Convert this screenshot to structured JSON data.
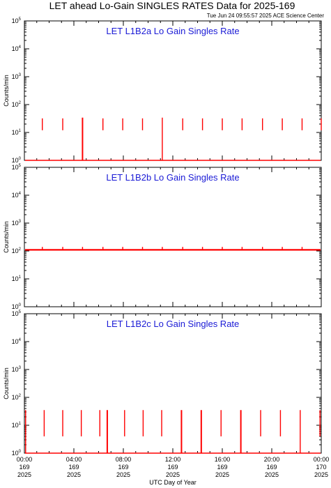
{
  "title": "LET ahead Lo-Gain SINGLES RATES Data for 2025-169",
  "timestamp": "Tue Jun 24 09:55:57 2025 ACE Science Center",
  "xlabel": "UTC Day of Year",
  "ylabel": "Counts/min",
  "colors": {
    "data": "#ff0000",
    "panel_title": "#1a1ad6",
    "axes": "#000000"
  },
  "x_ticks": [
    {
      "time": "00:00",
      "day": "169",
      "year": "2025"
    },
    {
      "time": "04:00",
      "day": "169",
      "year": "2025"
    },
    {
      "time": "08:00",
      "day": "169",
      "year": "2025"
    },
    {
      "time": "12:00",
      "day": "169",
      "year": "2025"
    },
    {
      "time": "16:00",
      "day": "169",
      "year": "2025"
    },
    {
      "time": "20:00",
      "day": "169",
      "year": "2025"
    },
    {
      "time": "00:00",
      "day": "170",
      "year": "2025"
    }
  ],
  "chart_data": [
    {
      "type": "line",
      "title": "LET L1B2a Lo Gain Singles Rate",
      "y_scale": "log",
      "ylim": [
        1,
        100000
      ],
      "xlim_hours": [
        0,
        24
      ],
      "baseline": 1,
      "spikes": [
        {
          "t": 1.45,
          "lo": 12,
          "hi": 32
        },
        {
          "t": 3.1,
          "lo": 12,
          "hi": 32
        },
        {
          "t": 4.7,
          "lo": 1,
          "hi": 34,
          "w": 2
        },
        {
          "t": 6.35,
          "lo": 12,
          "hi": 32
        },
        {
          "t": 7.95,
          "lo": 12,
          "hi": 32
        },
        {
          "t": 9.55,
          "lo": 12,
          "hi": 32
        },
        {
          "t": 11.15,
          "lo": 1,
          "hi": 34
        },
        {
          "t": 12.8,
          "lo": 12,
          "hi": 32
        },
        {
          "t": 14.4,
          "lo": 12,
          "hi": 32
        },
        {
          "t": 16.0,
          "lo": 12,
          "hi": 32
        },
        {
          "t": 17.6,
          "lo": 12,
          "hi": 32
        },
        {
          "t": 19.25,
          "lo": 12,
          "hi": 32
        },
        {
          "t": 20.85,
          "lo": 12,
          "hi": 32
        },
        {
          "t": 22.45,
          "lo": 12,
          "hi": 32
        },
        {
          "t": 24.0,
          "lo": 12,
          "hi": 32
        }
      ]
    },
    {
      "type": "line",
      "title": "LET L1B2b Lo Gain Singles Rate",
      "y_scale": "log",
      "ylim": [
        1,
        100000
      ],
      "xlim_hours": [
        0,
        24
      ],
      "baseline": 110,
      "spikes": [
        {
          "t": 1.45,
          "lo": 110,
          "hi": 140
        },
        {
          "t": 3.1,
          "lo": 110,
          "hi": 140
        },
        {
          "t": 4.7,
          "lo": 110,
          "hi": 140
        },
        {
          "t": 6.35,
          "lo": 110,
          "hi": 140
        },
        {
          "t": 7.95,
          "lo": 110,
          "hi": 140
        },
        {
          "t": 9.55,
          "lo": 110,
          "hi": 140
        },
        {
          "t": 11.15,
          "lo": 110,
          "hi": 140
        },
        {
          "t": 12.8,
          "lo": 110,
          "hi": 140
        },
        {
          "t": 14.4,
          "lo": 110,
          "hi": 140
        },
        {
          "t": 16.0,
          "lo": 110,
          "hi": 140
        },
        {
          "t": 17.6,
          "lo": 110,
          "hi": 140
        },
        {
          "t": 19.25,
          "lo": 110,
          "hi": 140
        },
        {
          "t": 20.85,
          "lo": 110,
          "hi": 140
        },
        {
          "t": 22.45,
          "lo": 110,
          "hi": 140
        }
      ]
    },
    {
      "type": "line",
      "title": "LET L1B2c Lo Gain Singles Rate",
      "y_scale": "log",
      "ylim": [
        1,
        100000
      ],
      "xlim_hours": [
        0,
        24
      ],
      "baseline": 1,
      "spikes": [
        {
          "t": 0.1,
          "lo": 1,
          "hi": 35
        },
        {
          "t": 1.6,
          "lo": 4,
          "hi": 35
        },
        {
          "t": 3.1,
          "lo": 4,
          "hi": 35
        },
        {
          "t": 4.6,
          "lo": 4,
          "hi": 35
        },
        {
          "t": 6.1,
          "lo": 4,
          "hi": 35
        },
        {
          "t": 6.7,
          "lo": 1,
          "hi": 35,
          "w": 2
        },
        {
          "t": 8.1,
          "lo": 4,
          "hi": 35
        },
        {
          "t": 9.6,
          "lo": 4,
          "hi": 35
        },
        {
          "t": 11.1,
          "lo": 4,
          "hi": 35
        },
        {
          "t": 12.7,
          "lo": 1,
          "hi": 35,
          "w": 2
        },
        {
          "t": 14.3,
          "lo": 1,
          "hi": 35,
          "w": 2
        },
        {
          "t": 15.9,
          "lo": 4,
          "hi": 35
        },
        {
          "t": 17.5,
          "lo": 1,
          "hi": 35,
          "w": 2
        },
        {
          "t": 19.1,
          "lo": 4,
          "hi": 35
        },
        {
          "t": 20.7,
          "lo": 4,
          "hi": 35
        },
        {
          "t": 22.3,
          "lo": 1,
          "hi": 35
        },
        {
          "t": 23.9,
          "lo": 4,
          "hi": 35
        }
      ]
    }
  ]
}
